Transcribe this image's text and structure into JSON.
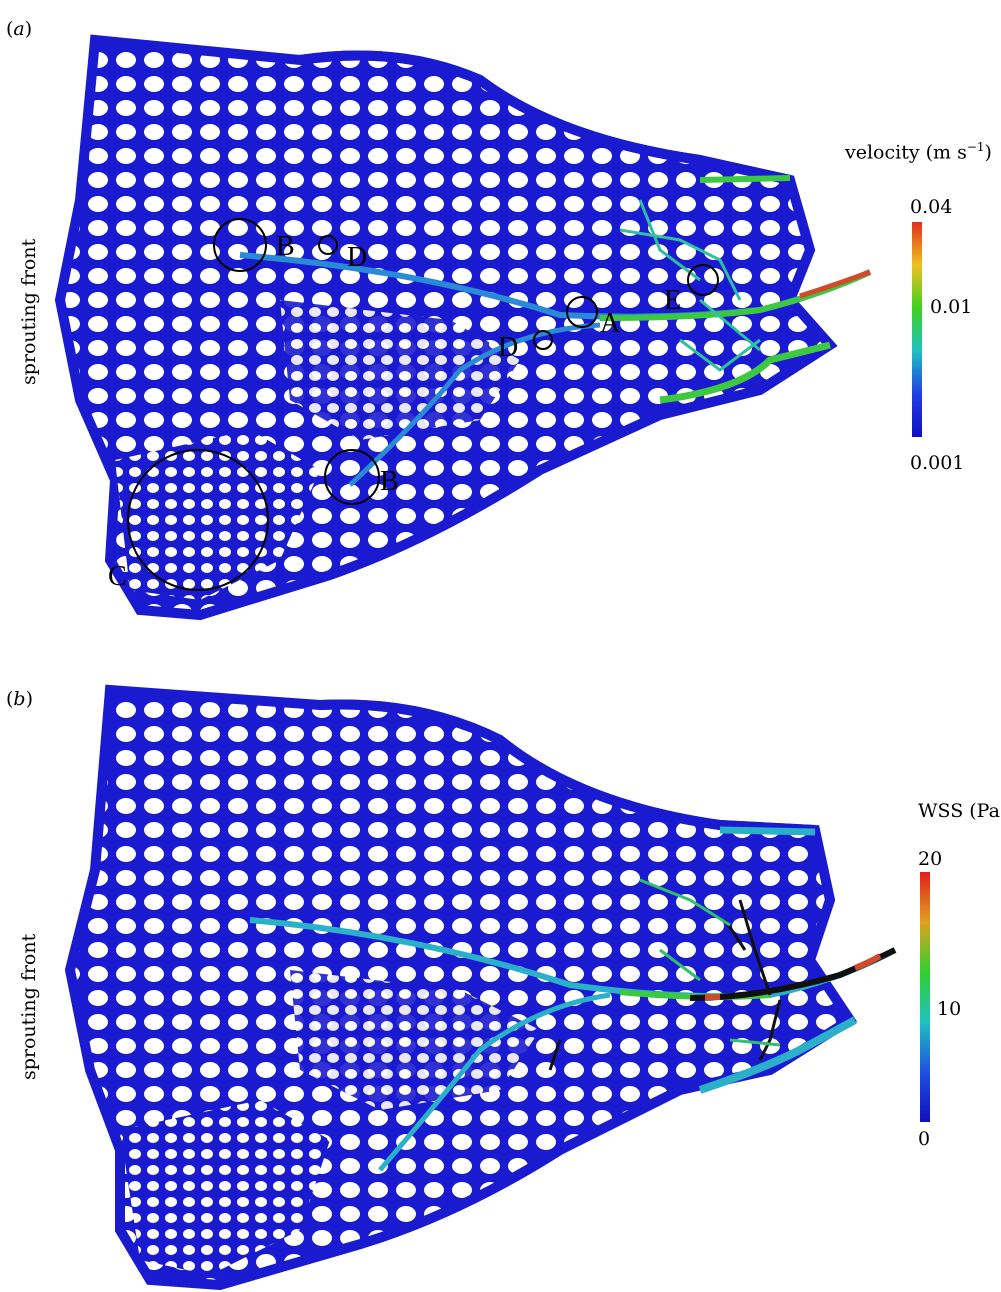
{
  "panels": [
    {
      "id": "a",
      "label": "a",
      "side_label": "sprouting front",
      "colorbar": {
        "title": "velocity (m s",
        "title_sup": "−1",
        "title_end": ")",
        "ticks": [
          "0.04",
          "0.01",
          "0.001"
        ],
        "colors": [
          "#e0301e",
          "#f0c020",
          "#40d020",
          "#20c0c0",
          "#2040e0",
          "#1010c0"
        ]
      },
      "markers": [
        "A",
        "B",
        "B",
        "C",
        "D",
        "D",
        "E"
      ]
    },
    {
      "id": "b",
      "label": "b",
      "side_label": "sprouting front",
      "colorbar": {
        "title": "WSS (Pa)",
        "ticks": [
          "20",
          "10",
          "0"
        ],
        "colors": [
          "#e0201e",
          "#e0a020",
          "#30d030",
          "#20c0c0",
          "#2050e0",
          "#1010c0"
        ]
      }
    }
  ],
  "colors": {
    "vessel_base": "#1a1ad0",
    "vessel_mid": "#2a8ad8",
    "vessel_green": "#3cc840",
    "vessel_red": "#d24a2a",
    "vessel_black": "#101010"
  }
}
